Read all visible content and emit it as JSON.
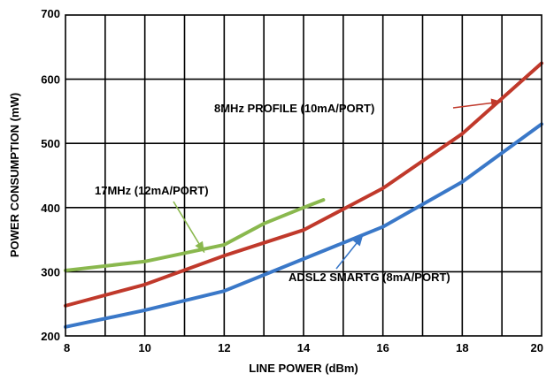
{
  "chart_data": {
    "type": "line",
    "title": "",
    "xlabel": "LINE POWER (dBm)",
    "ylabel": "POWER CONSUMPTION (mW)",
    "xlim": [
      8,
      20
    ],
    "ylim": [
      200,
      700
    ],
    "xticks": [
      8,
      10,
      12,
      14,
      16,
      18,
      20
    ],
    "yticks": [
      200,
      300,
      400,
      500,
      600,
      700
    ],
    "x_gridlines": [
      9,
      10,
      11,
      12,
      13,
      14,
      15,
      16,
      17,
      18,
      19
    ],
    "y_gridlines": [
      300,
      400,
      500,
      600
    ],
    "grid": true,
    "legend": "none (series labeled by callouts)",
    "series": [
      {
        "name": "8MHz PROFILE (10mA/PORT)",
        "color": "#c0392b",
        "x": [
          8,
          10,
          12,
          14,
          16,
          18,
          20
        ],
        "y": [
          247,
          280,
          325,
          365,
          430,
          515,
          625
        ]
      },
      {
        "name": "ADSL2 SMARTG (8mA/PORT)",
        "color": "#3a78c8",
        "x": [
          8,
          10,
          12,
          14,
          16,
          18,
          20
        ],
        "y": [
          214,
          240,
          270,
          320,
          370,
          440,
          530
        ]
      },
      {
        "name": "17MHz (12mA/PORT)",
        "color": "#8ab84e",
        "x": [
          8,
          10,
          12,
          13,
          14,
          14.5
        ],
        "y": [
          302,
          316,
          342,
          375,
          400,
          412
        ]
      }
    ],
    "annotations": [
      {
        "series": 0,
        "text": "8MHz PROFILE (10mA/PORT)",
        "point_x": 19,
        "point_y": 565
      },
      {
        "series": 1,
        "text": "ADSL2 SMARTG (8mA/PORT)",
        "point_x": 15.5,
        "point_y": 357
      },
      {
        "series": 2,
        "text": "17MHz (12mA/PORT)",
        "point_x": 11.5,
        "point_y": 330
      }
    ]
  }
}
